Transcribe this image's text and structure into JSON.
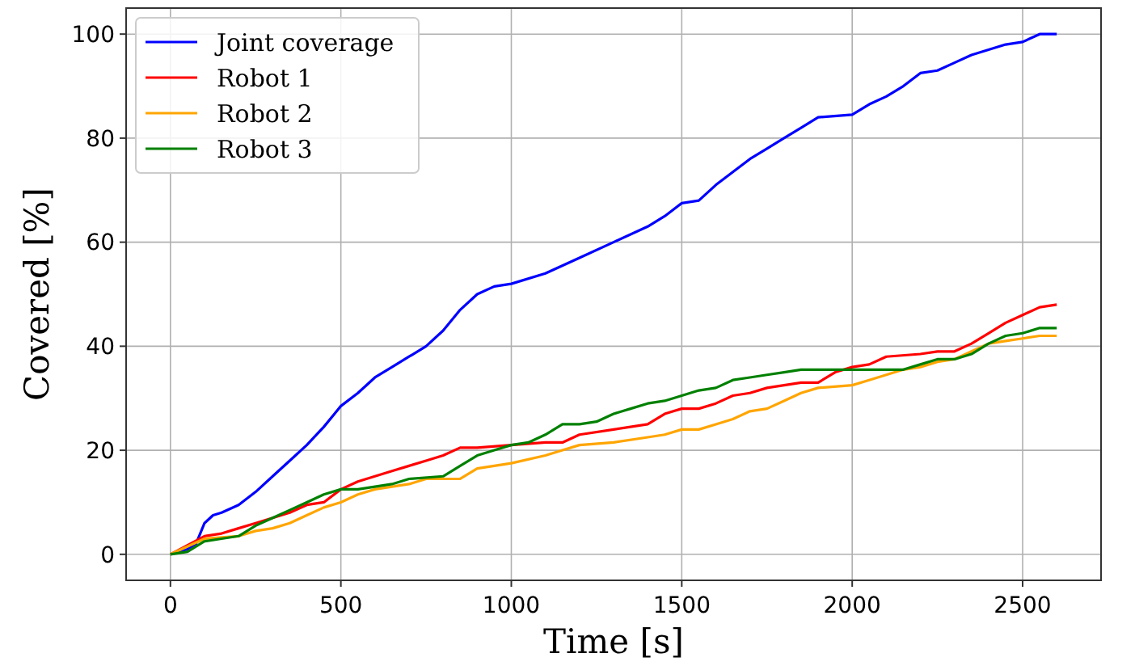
{
  "chart_data": {
    "type": "line",
    "xlabel": "Time [s]",
    "ylabel": "Covered [%]",
    "xlim": [
      -130,
      2730
    ],
    "ylim": [
      -5,
      105
    ],
    "xticks": [
      0,
      500,
      1000,
      1500,
      2000,
      2500
    ],
    "yticks": [
      0,
      20,
      40,
      60,
      80,
      100
    ],
    "grid": true,
    "legend": "top left",
    "line_style": "solid",
    "marker": "none",
    "series": [
      {
        "name": "Joint coverage",
        "color": "#0000ff",
        "x": [
          0,
          50,
          75,
          100,
          125,
          150,
          200,
          250,
          300,
          350,
          400,
          450,
          500,
          550,
          600,
          650,
          700,
          750,
          800,
          850,
          900,
          950,
          1000,
          1100,
          1200,
          1300,
          1400,
          1450,
          1500,
          1550,
          1600,
          1650,
          1700,
          1750,
          1800,
          1850,
          1900,
          2000,
          2050,
          2100,
          2150,
          2200,
          2250,
          2300,
          2350,
          2400,
          2450,
          2500,
          2550,
          2600
        ],
        "values": [
          0,
          1,
          2,
          6,
          7.5,
          8,
          9.5,
          12,
          15,
          18,
          21,
          24.5,
          28.5,
          31,
          34,
          36,
          38,
          40,
          43,
          47,
          50,
          51.5,
          52,
          54,
          57,
          60,
          63,
          65,
          67.5,
          68,
          71,
          73.5,
          76,
          78,
          80,
          82,
          84,
          84.5,
          86.5,
          88,
          90,
          92.5,
          93,
          94.5,
          96,
          97,
          98,
          98.5,
          100,
          100
        ]
      },
      {
        "name": "Robot 1",
        "color": "#ff0000",
        "x": [
          0,
          100,
          150,
          200,
          250,
          300,
          350,
          400,
          450,
          500,
          550,
          600,
          650,
          700,
          750,
          800,
          850,
          900,
          1000,
          1100,
          1150,
          1200,
          1300,
          1400,
          1450,
          1500,
          1550,
          1600,
          1650,
          1700,
          1750,
          1800,
          1850,
          1900,
          1950,
          2000,
          2050,
          2100,
          2200,
          2250,
          2300,
          2350,
          2400,
          2450,
          2500,
          2550,
          2600
        ],
        "values": [
          0,
          3.5,
          4,
          5,
          6,
          7,
          8,
          9.5,
          10,
          12.5,
          14,
          15,
          16,
          17,
          18,
          19,
          20.5,
          20.5,
          21,
          21.5,
          21.5,
          23,
          24,
          25,
          27,
          28,
          28,
          29,
          30.5,
          31,
          32,
          32.5,
          33,
          33,
          35,
          36,
          36.5,
          38,
          38.5,
          39,
          39,
          40.5,
          42.5,
          44.5,
          46,
          47.5,
          48
        ]
      },
      {
        "name": "Robot 2",
        "color": "#ffa500",
        "x": [
          0,
          100,
          200,
          250,
          300,
          350,
          400,
          450,
          500,
          550,
          600,
          700,
          750,
          850,
          900,
          950,
          1000,
          1100,
          1150,
          1200,
          1300,
          1400,
          1450,
          1500,
          1550,
          1600,
          1650,
          1700,
          1750,
          1800,
          1850,
          1900,
          2000,
          2050,
          2100,
          2150,
          2200,
          2250,
          2300,
          2350,
          2400,
          2450,
          2500,
          2550,
          2600
        ],
        "values": [
          0,
          3,
          3.5,
          4.5,
          5,
          6,
          7.5,
          9,
          10,
          11.5,
          12.5,
          13.5,
          14.5,
          14.5,
          16.5,
          17,
          17.5,
          19,
          20,
          21,
          21.5,
          22.5,
          23,
          24,
          24,
          25,
          26,
          27.5,
          28,
          29.5,
          31,
          32,
          32.5,
          33.5,
          34.5,
          35.5,
          36,
          37,
          37.5,
          39,
          40.5,
          41,
          41.5,
          42,
          42
        ]
      },
      {
        "name": "Robot 3",
        "color": "#008000",
        "x": [
          0,
          50,
          100,
          150,
          200,
          250,
          300,
          350,
          400,
          450,
          500,
          550,
          600,
          650,
          700,
          800,
          850,
          900,
          950,
          1000,
          1050,
          1100,
          1150,
          1200,
          1250,
          1300,
          1350,
          1400,
          1450,
          1500,
          1550,
          1600,
          1650,
          1700,
          1750,
          1800,
          1850,
          2000,
          2150,
          2200,
          2250,
          2300,
          2350,
          2400,
          2450,
          2500,
          2550,
          2600
        ],
        "values": [
          0,
          0.5,
          2.5,
          3,
          3.5,
          5.5,
          7,
          8.5,
          10,
          11.5,
          12.5,
          12.5,
          13,
          13.5,
          14.5,
          15,
          17,
          19,
          20,
          21,
          21.5,
          23,
          25,
          25,
          25.5,
          27,
          28,
          29,
          29.5,
          30.5,
          31.5,
          32,
          33.5,
          34,
          34.5,
          35,
          35.5,
          35.5,
          35.5,
          36.5,
          37.5,
          37.5,
          38.5,
          40.5,
          42,
          42.5,
          43.5,
          43.5
        ]
      }
    ]
  }
}
